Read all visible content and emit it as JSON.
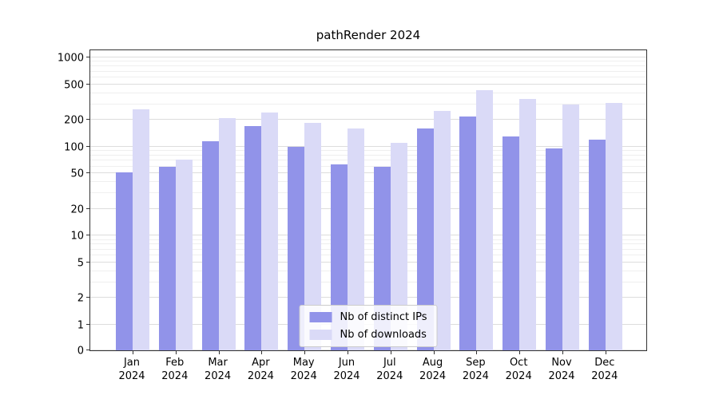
{
  "chart_data": {
    "type": "bar",
    "title": "pathRender 2024",
    "categories": [
      "Jan",
      "Feb",
      "Mar",
      "Apr",
      "May",
      "Jun",
      "Jul",
      "Aug",
      "Sep",
      "Oct",
      "Nov",
      "Dec"
    ],
    "year_label": "2024",
    "series": [
      {
        "name": "Nb of distinct IPs",
        "color": "#9193e9",
        "values": [
          51,
          60,
          115,
          170,
          100,
          63,
          60,
          160,
          220,
          130,
          95,
          120
        ]
      },
      {
        "name": "Nb of downloads",
        "color": "#dadaf7",
        "values": [
          265,
          72,
          210,
          240,
          185,
          160,
          110,
          250,
          430,
          345,
          300,
          310
        ]
      }
    ],
    "yscale": "symlog",
    "ylim": [
      0,
      1200
    ],
    "y_ticks": [
      0,
      1,
      2,
      5,
      10,
      20,
      50,
      100,
      200,
      500,
      1000
    ],
    "y_minor_gridlines": [
      3,
      4,
      6,
      7,
      8,
      9,
      30,
      40,
      60,
      70,
      80,
      90,
      300,
      400,
      600,
      700,
      800,
      900
    ],
    "grid": true,
    "legend_position": "lower center",
    "xlabel": "",
    "ylabel": ""
  },
  "colors": {
    "grid_major": "#dddddd",
    "grid_minor": "#efefef",
    "spine": "#333333",
    "background": "#ffffff"
  }
}
